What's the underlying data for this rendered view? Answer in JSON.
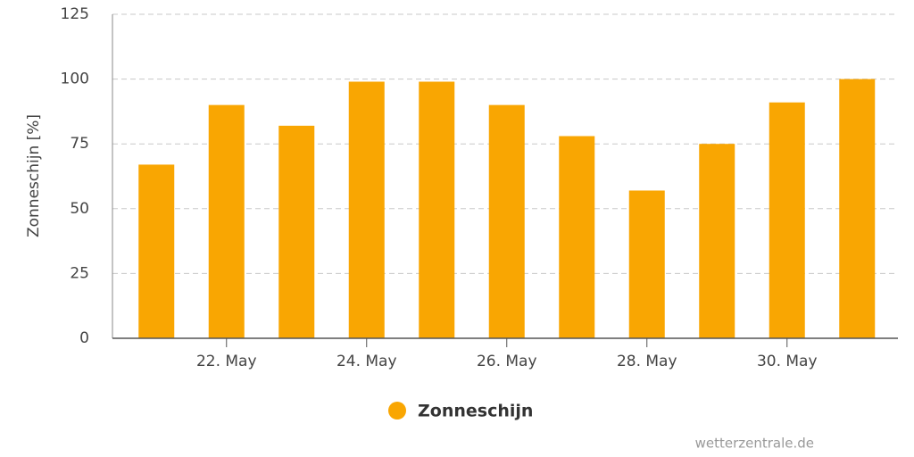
{
  "chart_data": {
    "type": "bar",
    "y_label": "Zonneschijn [%]",
    "categories": [
      null,
      "22. May",
      null,
      "24. May",
      null,
      "26. May",
      null,
      "28. May",
      null,
      "30. May",
      null
    ],
    "series": [
      {
        "name": "Zonneschijn",
        "color": "#f9a602",
        "values": [
          67,
          90,
          82,
          99,
          99,
          90,
          78,
          57,
          75,
          91,
          100
        ]
      }
    ],
    "ylim": [
      0,
      125
    ],
    "yticks": [
      0,
      25,
      50,
      75,
      100,
      125
    ],
    "grid": true,
    "credit": "wetterzentrale.de"
  }
}
